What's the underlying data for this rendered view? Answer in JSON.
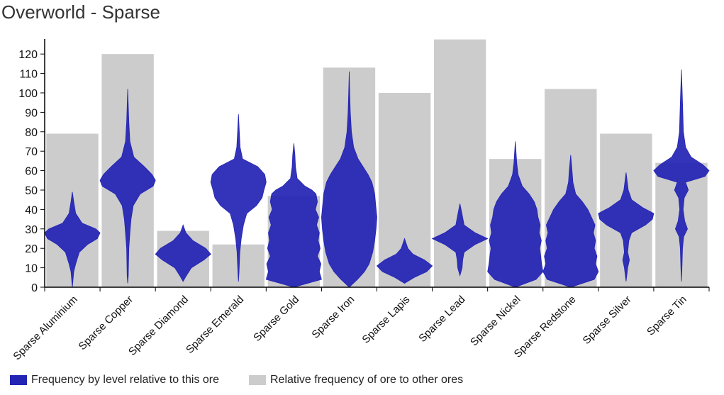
{
  "title": "Overworld - Sparse",
  "chart_data": {
    "type": "bar",
    "categories": [
      "Sparse Aluminium",
      "Sparse Copper",
      "Sparse Diamond",
      "Sparse Emerald",
      "Sparse Gold",
      "Sparse Iron",
      "Sparse Lapis",
      "Sparse Lead",
      "Sparse Nickel",
      "Sparse Redstone",
      "Sparse Silver",
      "Sparse Tin"
    ],
    "ylim": [
      0,
      127
    ],
    "yticks": [
      0,
      10,
      20,
      30,
      40,
      50,
      60,
      70,
      80,
      90,
      100,
      110,
      120
    ],
    "series": [
      {
        "name": "Relative frequency of ore to other ores",
        "color": "#cccccc",
        "values": [
          79,
          120,
          29,
          22,
          47,
          113,
          100,
          128,
          66,
          102,
          79,
          64
        ]
      },
      {
        "name": "Frequency by level relative to this ore",
        "color": "#2323b4",
        "violins": [
          {
            "min": 0,
            "max": 49,
            "profile": [
              [
                0,
                0
              ],
              [
                8,
                0.05
              ],
              [
                12,
                0.12
              ],
              [
                18,
                0.25
              ],
              [
                22,
                0.55
              ],
              [
                25,
                0.9
              ],
              [
                28,
                1.0
              ],
              [
                30,
                0.85
              ],
              [
                33,
                0.35
              ],
              [
                38,
                0.12
              ],
              [
                44,
                0.05
              ],
              [
                49,
                0
              ]
            ]
          },
          {
            "min": 2,
            "max": 102,
            "profile": [
              [
                2,
                0
              ],
              [
                6,
                0.02
              ],
              [
                20,
                0.04
              ],
              [
                28,
                0.08
              ],
              [
                35,
                0.12
              ],
              [
                42,
                0.2
              ],
              [
                48,
                0.45
              ],
              [
                52,
                0.92
              ],
              [
                55,
                1.0
              ],
              [
                58,
                0.88
              ],
              [
                62,
                0.6
              ],
              [
                67,
                0.22
              ],
              [
                75,
                0.08
              ],
              [
                85,
                0.04
              ],
              [
                102,
                0
              ]
            ]
          },
          {
            "min": 3,
            "max": 32,
            "profile": [
              [
                3,
                0
              ],
              [
                6,
                0.12
              ],
              [
                10,
                0.3
              ],
              [
                14,
                0.75
              ],
              [
                17,
                1.0
              ],
              [
                20,
                0.82
              ],
              [
                24,
                0.35
              ],
              [
                28,
                0.1
              ],
              [
                32,
                0
              ]
            ]
          },
          {
            "min": 3,
            "max": 89,
            "profile": [
              [
                3,
                0
              ],
              [
                8,
                0.02
              ],
              [
                18,
                0.05
              ],
              [
                25,
                0.1
              ],
              [
                32,
                0.18
              ],
              [
                38,
                0.3
              ],
              [
                42,
                0.65
              ],
              [
                46,
                0.85
              ],
              [
                50,
                0.92
              ],
              [
                54,
                1.0
              ],
              [
                58,
                0.95
              ],
              [
                62,
                0.7
              ],
              [
                66,
                0.15
              ],
              [
                72,
                0.06
              ],
              [
                80,
                0.03
              ],
              [
                89,
                0
              ]
            ]
          },
          {
            "min": 0,
            "max": 74,
            "profile": [
              [
                0,
                0
              ],
              [
                4,
                1.0
              ],
              [
                8,
                0.92
              ],
              [
                12,
                0.98
              ],
              [
                16,
                0.85
              ],
              [
                20,
                0.95
              ],
              [
                24,
                0.88
              ],
              [
                28,
                0.92
              ],
              [
                32,
                0.82
              ],
              [
                36,
                0.9
              ],
              [
                40,
                0.78
              ],
              [
                44,
                0.85
              ],
              [
                48,
                0.8
              ],
              [
                50,
                0.65
              ],
              [
                52,
                0.4
              ],
              [
                56,
                0.12
              ],
              [
                62,
                0.06
              ],
              [
                68,
                0.04
              ],
              [
                74,
                0
              ]
            ]
          },
          {
            "min": 0,
            "max": 111,
            "profile": [
              [
                0,
                0
              ],
              [
                4,
                0.3
              ],
              [
                8,
                0.55
              ],
              [
                12,
                0.72
              ],
              [
                18,
                0.85
              ],
              [
                24,
                0.92
              ],
              [
                30,
                0.97
              ],
              [
                36,
                1.0
              ],
              [
                42,
                0.96
              ],
              [
                48,
                0.92
              ],
              [
                54,
                0.82
              ],
              [
                58,
                0.68
              ],
              [
                62,
                0.5
              ],
              [
                66,
                0.32
              ],
              [
                72,
                0.16
              ],
              [
                80,
                0.08
              ],
              [
                90,
                0.04
              ],
              [
                100,
                0.02
              ],
              [
                111,
                0
              ]
            ]
          },
          {
            "min": 2,
            "max": 25,
            "profile": [
              [
                2,
                0
              ],
              [
                5,
                0.35
              ],
              [
                8,
                0.8
              ],
              [
                11,
                1.0
              ],
              [
                14,
                0.72
              ],
              [
                17,
                0.3
              ],
              [
                20,
                0.12
              ],
              [
                25,
                0
              ]
            ]
          },
          {
            "min": 6,
            "max": 43,
            "profile": [
              [
                6,
                0
              ],
              [
                10,
                0.08
              ],
              [
                14,
                0.1
              ],
              [
                18,
                0.15
              ],
              [
                22,
                0.55
              ],
              [
                25,
                1.0
              ],
              [
                28,
                0.55
              ],
              [
                32,
                0.15
              ],
              [
                38,
                0.07
              ],
              [
                43,
                0
              ]
            ]
          },
          {
            "min": 0,
            "max": 75,
            "profile": [
              [
                0,
                0
              ],
              [
                4,
                0.75
              ],
              [
                8,
                1.0
              ],
              [
                12,
                0.95
              ],
              [
                16,
                0.92
              ],
              [
                20,
                0.88
              ],
              [
                24,
                0.94
              ],
              [
                28,
                0.86
              ],
              [
                32,
                0.9
              ],
              [
                36,
                0.82
              ],
              [
                40,
                0.78
              ],
              [
                44,
                0.68
              ],
              [
                48,
                0.5
              ],
              [
                52,
                0.25
              ],
              [
                58,
                0.1
              ],
              [
                64,
                0.05
              ],
              [
                75,
                0
              ]
            ]
          },
          {
            "min": 0,
            "max": 68,
            "profile": [
              [
                0,
                0
              ],
              [
                4,
                0.85
              ],
              [
                8,
                1.0
              ],
              [
                12,
                0.9
              ],
              [
                16,
                0.95
              ],
              [
                20,
                0.85
              ],
              [
                24,
                0.9
              ],
              [
                28,
                0.82
              ],
              [
                32,
                0.88
              ],
              [
                36,
                0.75
              ],
              [
                40,
                0.62
              ],
              [
                44,
                0.42
              ],
              [
                48,
                0.18
              ],
              [
                54,
                0.08
              ],
              [
                60,
                0.05
              ],
              [
                68,
                0
              ]
            ]
          },
          {
            "min": 3,
            "max": 59,
            "profile": [
              [
                3,
                0
              ],
              [
                10,
                0.06
              ],
              [
                14,
                0.12
              ],
              [
                18,
                0.06
              ],
              [
                24,
                0.1
              ],
              [
                28,
                0.2
              ],
              [
                32,
                0.7
              ],
              [
                35,
                0.95
              ],
              [
                38,
                1.0
              ],
              [
                41,
                0.6
              ],
              [
                45,
                0.2
              ],
              [
                50,
                0.08
              ],
              [
                59,
                0
              ]
            ]
          },
          {
            "min": 3,
            "max": 112,
            "profile": [
              [
                3,
                0
              ],
              [
                10,
                0.02
              ],
              [
                20,
                0.04
              ],
              [
                26,
                0.08
              ],
              [
                30,
                0.22
              ],
              [
                34,
                0.12
              ],
              [
                40,
                0.06
              ],
              [
                46,
                0.1
              ],
              [
                50,
                0.25
              ],
              [
                54,
                0.15
              ],
              [
                57,
                0.85
              ],
              [
                60,
                1.0
              ],
              [
                63,
                0.78
              ],
              [
                67,
                0.35
              ],
              [
                72,
                0.15
              ],
              [
                80,
                0.07
              ],
              [
                95,
                0.04
              ],
              [
                112,
                0
              ]
            ]
          }
        ]
      }
    ]
  },
  "legend": [
    {
      "label": "Frequency by level relative to this ore",
      "color": "#2323b4"
    },
    {
      "label": "Relative frequency of ore to other ores",
      "color": "#cccccc"
    }
  ]
}
